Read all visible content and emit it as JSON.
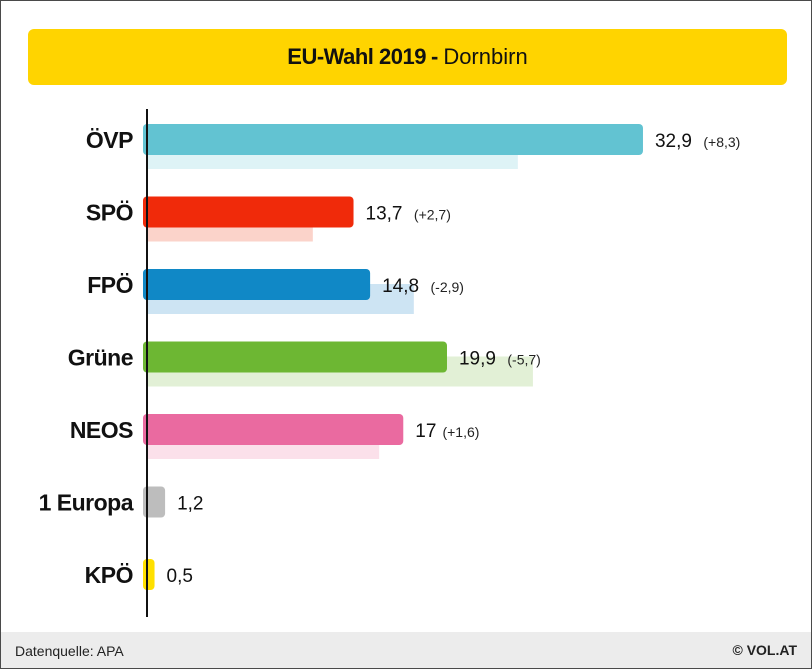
{
  "title": {
    "main": "EU-Wahl 2019",
    "separator": "-",
    "sub": "Dornbirn"
  },
  "footer": {
    "source": "Datenquelle: APA",
    "copyright": "© VOL.AT"
  },
  "colors": {
    "title_bg": "#ffd400",
    "footer_bg": "#ececec"
  },
  "chart_data": {
    "type": "bar",
    "orientation": "horizontal",
    "categories": [
      "ÖVP",
      "SPÖ",
      "FPÖ",
      "Grüne",
      "NEOS",
      "1 Europa",
      "KPÖ"
    ],
    "series": [
      {
        "values": [
          32.9,
          13.7,
          14.8,
          19.9,
          17,
          1.2,
          0.5
        ]
      },
      {
        "values": [
          24.6,
          11.0,
          17.7,
          25.6,
          15.4,
          null,
          null
        ]
      }
    ],
    "value_labels": [
      "32,9",
      "13,7",
      "14,8",
      "19,9",
      "17",
      "1,2",
      "0,5"
    ],
    "change_labels": [
      "(+8,3)",
      "(+2,7)",
      "(-2,9)",
      "(-5,7)",
      "(+1,6)",
      "",
      ""
    ],
    "colors": [
      "#62c3d2",
      "#f02a0a",
      "#1088c6",
      "#6db733",
      "#ea6aa0",
      "#bdbdbd",
      "#ffe000"
    ],
    "prev_colors": [
      "#def3f6",
      "#fbd3ca",
      "#cde4f3",
      "#e2f0d6",
      "#fbe0ea",
      "#eeeeee",
      "#fff6bf"
    ],
    "xlim": [
      0,
      33.3
    ],
    "grid": false,
    "legend": "none"
  }
}
